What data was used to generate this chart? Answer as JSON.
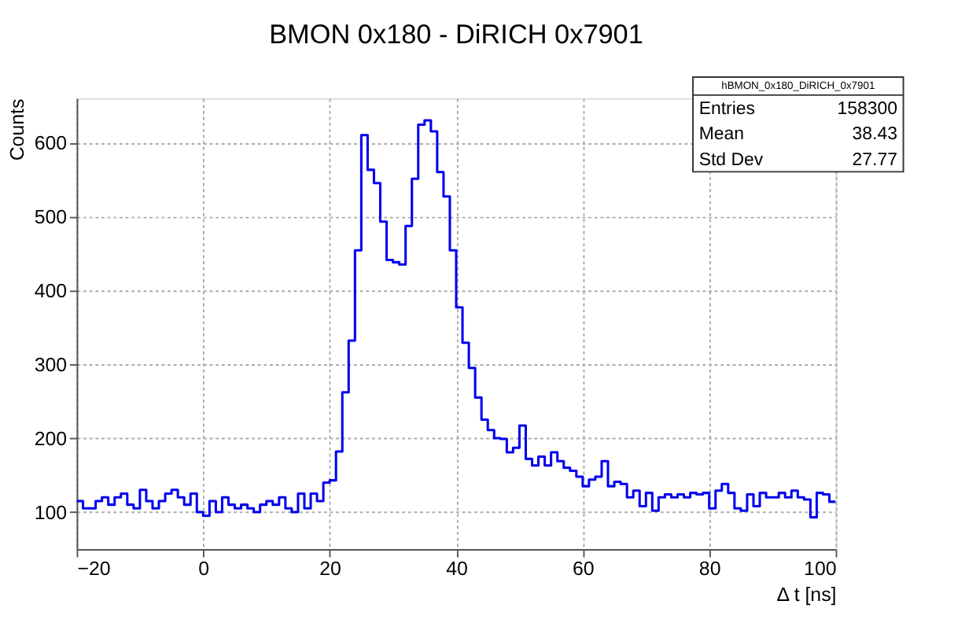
{
  "chart_data": {
    "type": "histogram",
    "title": "BMON 0x180 - DiRICH 0x7901",
    "xlabel": "Δ t [ns]",
    "ylabel": "Counts",
    "bins": [
      -20,
      -19,
      -18,
      -17,
      -16,
      -15,
      -14,
      -13,
      -12,
      -11,
      -10,
      -9,
      -8,
      -7,
      -6,
      -5,
      -4,
      -3,
      -2,
      -1,
      0,
      1,
      2,
      3,
      4,
      5,
      6,
      7,
      8,
      9,
      10,
      11,
      12,
      13,
      14,
      15,
      16,
      17,
      18,
      19,
      20,
      21,
      22,
      23,
      24,
      25,
      26,
      27,
      28,
      29,
      30,
      31,
      32,
      33,
      34,
      35,
      36,
      37,
      38,
      39,
      40,
      41,
      42,
      43,
      44,
      45,
      46,
      47,
      48,
      49,
      50,
      51,
      52,
      53,
      54,
      55,
      56,
      57,
      58,
      59,
      60,
      61,
      62,
      63,
      64,
      65,
      66,
      67,
      68,
      69,
      70,
      71,
      72,
      73,
      74,
      75,
      76,
      77,
      78,
      79,
      80,
      81,
      82,
      83,
      84,
      85,
      86,
      87,
      88,
      89,
      90,
      91,
      92,
      93,
      94,
      95,
      96,
      97,
      98,
      99,
      100
    ],
    "values": [
      115,
      105,
      105,
      115,
      120,
      110,
      120,
      125,
      110,
      105,
      130,
      115,
      105,
      115,
      125,
      130,
      120,
      110,
      125,
      100,
      95,
      115,
      100,
      120,
      110,
      105,
      110,
      105,
      100,
      110,
      115,
      110,
      120,
      105,
      100,
      125,
      105,
      125,
      115,
      140,
      143,
      182,
      262,
      332,
      454,
      610,
      563,
      545,
      493,
      441,
      438,
      435,
      487,
      551,
      624,
      630,
      615,
      560,
      527,
      454,
      377,
      329,
      295,
      255,
      225,
      211,
      200,
      199,
      181,
      187,
      217,
      172,
      163,
      175,
      163,
      181,
      169,
      160,
      156,
      148,
      135,
      144,
      148,
      169,
      135,
      141,
      138,
      120,
      129,
      108,
      126,
      102,
      120,
      124,
      120,
      124,
      120,
      126,
      124,
      126,
      105,
      129,
      138,
      126,
      105,
      102,
      124,
      108,
      126,
      120,
      120,
      126,
      120,
      129,
      120,
      117,
      93,
      126,
      124,
      114
    ],
    "color": "#0000ee",
    "xlim": [
      -20,
      100
    ],
    "ylim": [
      50,
      660
    ],
    "xticks": [
      -20,
      0,
      20,
      40,
      60,
      80,
      100
    ],
    "yticks": [
      100,
      200,
      300,
      400,
      500,
      600
    ],
    "grid": true,
    "line_style": "solid",
    "annotations": [
      "hBMON_0x180_DiRICH_0x7901",
      "Entries",
      "158300",
      "Mean",
      "38.43",
      "Std Dev",
      "27.77"
    ]
  }
}
